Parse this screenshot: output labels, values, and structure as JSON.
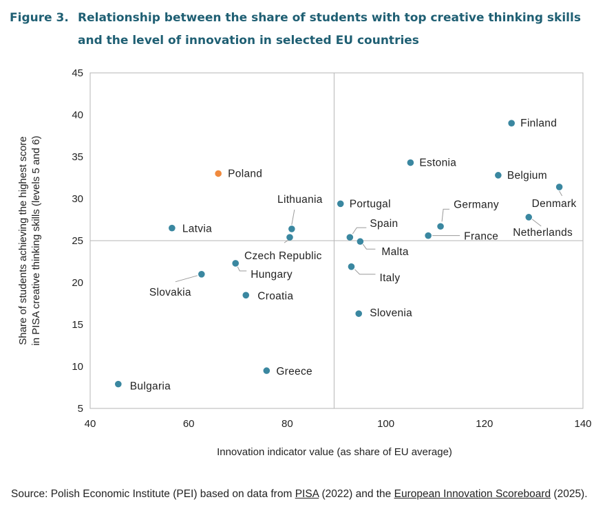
{
  "figure": {
    "number": "Figure 3.",
    "title": "Relationship between the share of students with top creative thinking skills and the level of innovation in selected EU countries"
  },
  "chart_data": {
    "type": "scatter",
    "xlabel": "Innovation indicator value (as share of EU average)",
    "ylabel_line1": "Share of students achieving the highest score",
    "ylabel_line2": "in PISA creative thinking skills (levels 5 and 6)",
    "xlim": [
      40,
      140
    ],
    "ylim": [
      5,
      45
    ],
    "xticks": [
      40,
      60,
      80,
      100,
      120,
      140
    ],
    "yticks": [
      5,
      10,
      15,
      20,
      25,
      30,
      35,
      40,
      45
    ],
    "reference_lines": {
      "x": 89.5,
      "y": 25
    },
    "colors": {
      "default": "#3a87a0",
      "highlight": "#f08a3e",
      "axis": "#b5b5b5",
      "leader": "#999999"
    },
    "points": [
      {
        "name": "Finland",
        "x": 125.5,
        "y": 39.0
      },
      {
        "name": "Estonia",
        "x": 105.0,
        "y": 34.3
      },
      {
        "name": "Belgium",
        "x": 122.8,
        "y": 32.8
      },
      {
        "name": "Denmark",
        "x": 135.2,
        "y": 31.4
      },
      {
        "name": "Poland",
        "x": 66.0,
        "y": 33.0,
        "highlight": true
      },
      {
        "name": "Lithuania",
        "x": 80.9,
        "y": 26.4
      },
      {
        "name": "Portugal",
        "x": 90.8,
        "y": 29.4
      },
      {
        "name": "Latvia",
        "x": 56.6,
        "y": 26.5
      },
      {
        "name": "Czech Republic",
        "x": 80.5,
        "y": 25.4
      },
      {
        "name": "Spain",
        "x": 92.7,
        "y": 25.4
      },
      {
        "name": "Malta",
        "x": 94.8,
        "y": 24.9
      },
      {
        "name": "Germany",
        "x": 111.1,
        "y": 26.7
      },
      {
        "name": "France",
        "x": 108.6,
        "y": 25.6
      },
      {
        "name": "Netherlands",
        "x": 129.0,
        "y": 27.8
      },
      {
        "name": "Hungary",
        "x": 69.5,
        "y": 22.3
      },
      {
        "name": "Slovakia",
        "x": 62.6,
        "y": 21.0
      },
      {
        "name": "Italy",
        "x": 93.0,
        "y": 21.9
      },
      {
        "name": "Croatia",
        "x": 71.6,
        "y": 18.5
      },
      {
        "name": "Slovenia",
        "x": 94.5,
        "y": 16.3
      },
      {
        "name": "Greece",
        "x": 75.8,
        "y": 9.5
      },
      {
        "name": "Bulgaria",
        "x": 45.7,
        "y": 7.9
      }
    ]
  },
  "source": {
    "prefix": "Source: Polish Economic Institute (PEI) based on data from ",
    "link1": "PISA",
    "middle": " (2022) and the ",
    "link2": "European Innovation Scoreboard",
    "suffix": " (2025)."
  }
}
